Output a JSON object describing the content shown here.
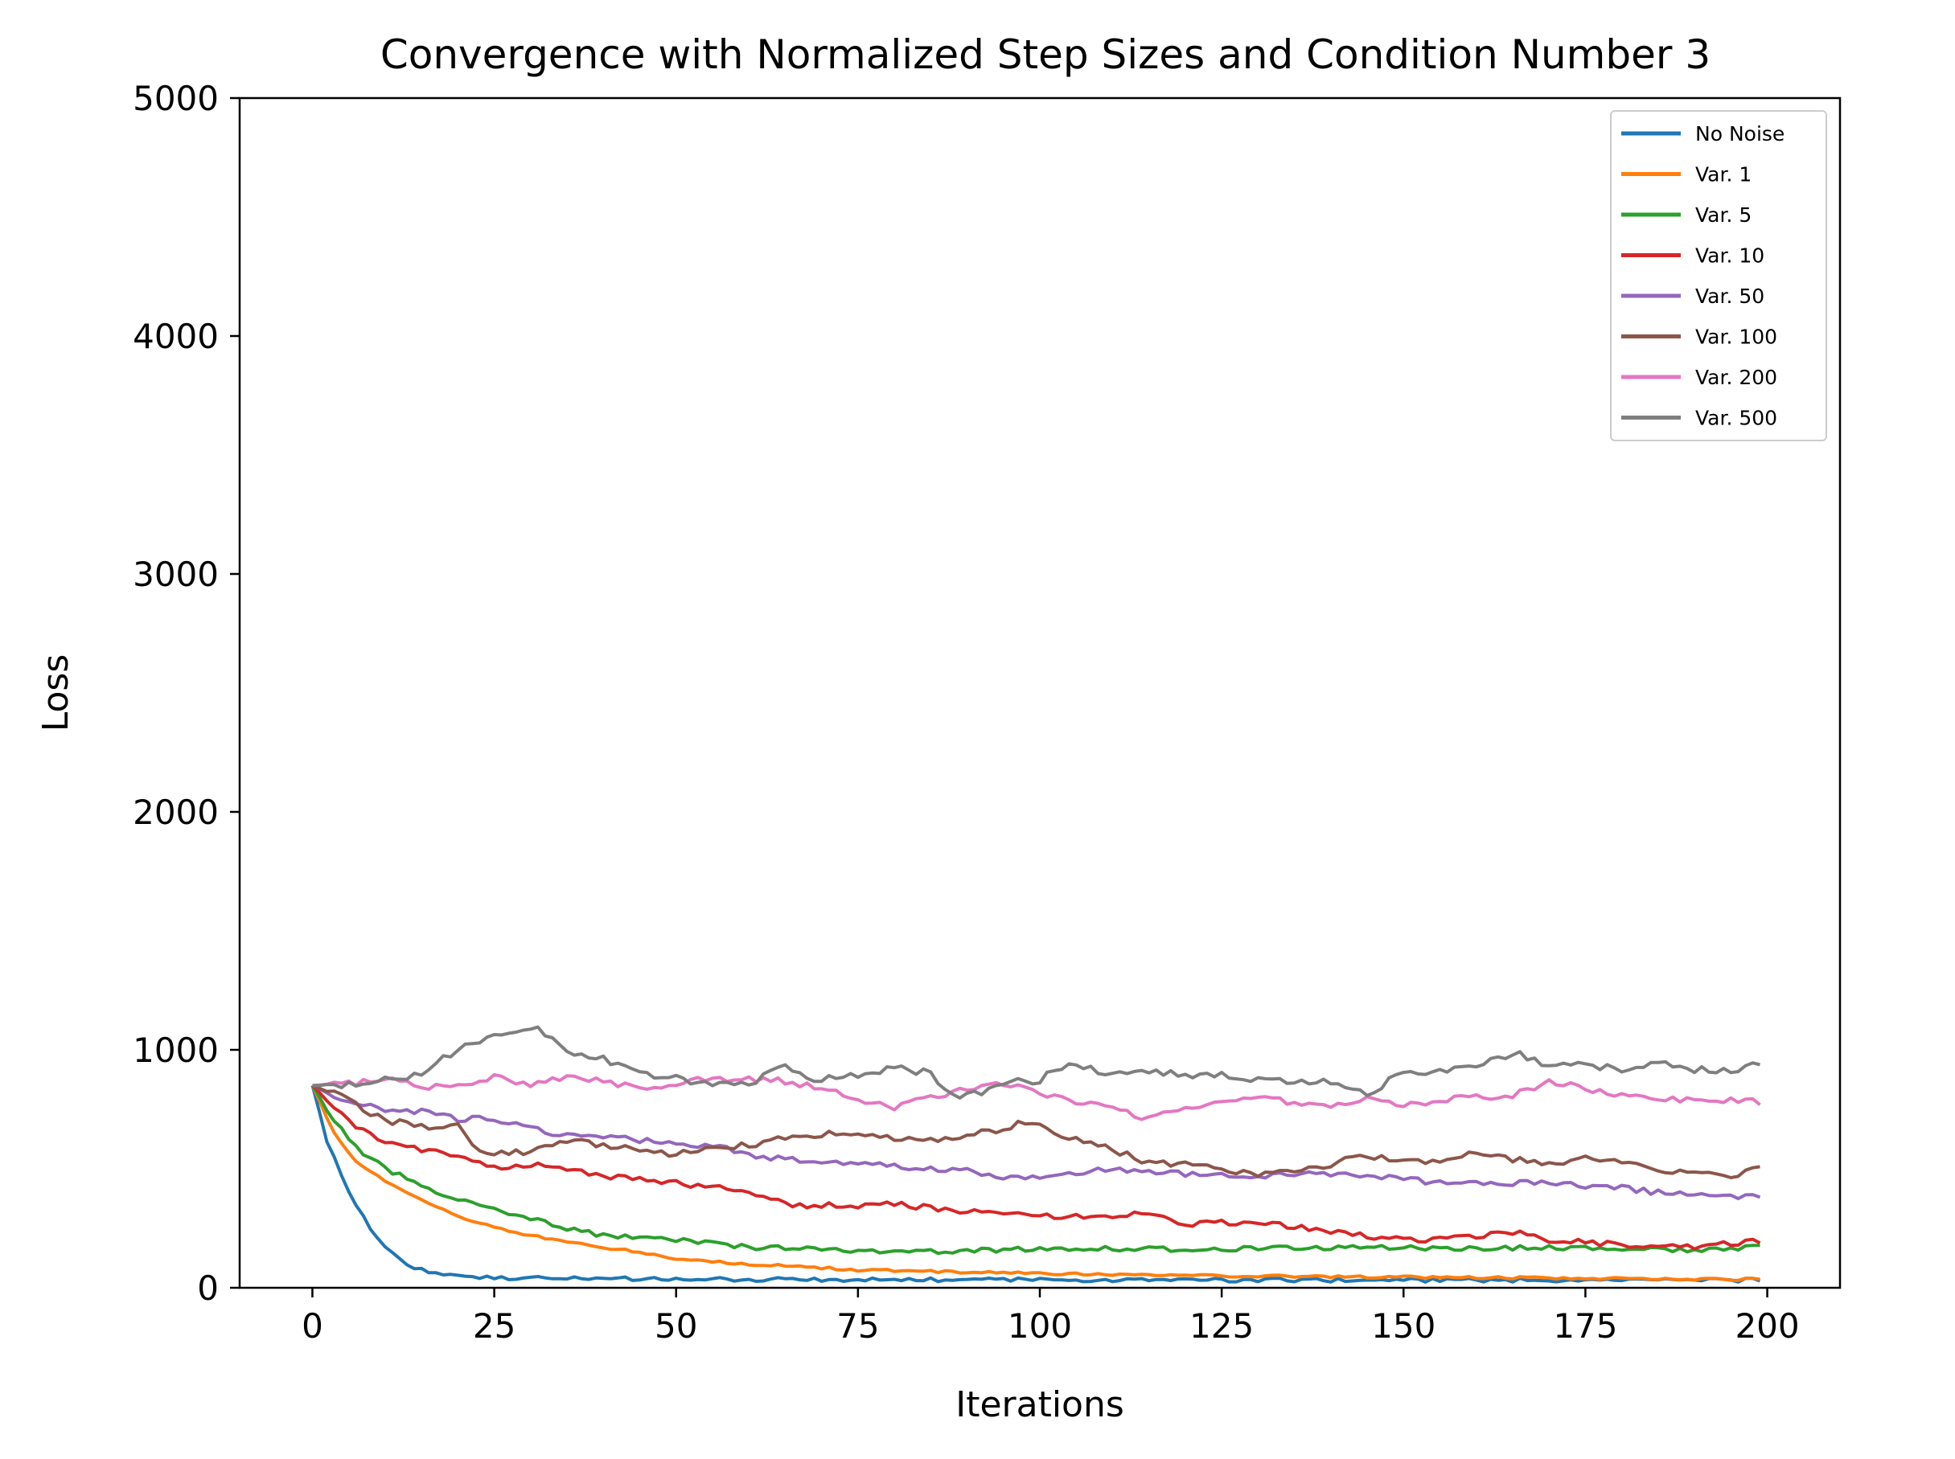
{
  "chart_data": {
    "type": "line",
    "title": "Convergence with Normalized Step Sizes and Condition Number 3",
    "xlabel": "Iterations",
    "ylabel": "Loss",
    "xlim": [
      -10,
      210
    ],
    "ylim": [
      0,
      5000
    ],
    "xticks": [
      0,
      25,
      50,
      75,
      100,
      125,
      150,
      175,
      200
    ],
    "yticks": [
      0,
      1000,
      2000,
      3000,
      4000,
      5000
    ],
    "grid": false,
    "legend_position": "top-right",
    "x_range": [
      0,
      199
    ],
    "series": [
      {
        "name": "No Noise",
        "color": "#1f77b4",
        "noise": 8,
        "anchors": [
          [
            0,
            850
          ],
          [
            2,
            620
          ],
          [
            4,
            470
          ],
          [
            6,
            350
          ],
          [
            8,
            250
          ],
          [
            10,
            170
          ],
          [
            12,
            120
          ],
          [
            14,
            85
          ],
          [
            17,
            60
          ],
          [
            20,
            48
          ],
          [
            25,
            42
          ],
          [
            30,
            40
          ],
          [
            40,
            38
          ],
          [
            60,
            35
          ],
          [
            100,
            33
          ],
          [
            150,
            32
          ],
          [
            199,
            32
          ]
        ]
      },
      {
        "name": "Var. 1",
        "color": "#ff7f0e",
        "noise": 5,
        "anchors": [
          [
            0,
            850
          ],
          [
            3,
            650
          ],
          [
            6,
            530
          ],
          [
            10,
            450
          ],
          [
            15,
            370
          ],
          [
            20,
            300
          ],
          [
            25,
            255
          ],
          [
            30,
            220
          ],
          [
            35,
            190
          ],
          [
            40,
            170
          ],
          [
            45,
            150
          ],
          [
            50,
            120
          ],
          [
            60,
            100
          ],
          [
            75,
            75
          ],
          [
            100,
            60
          ],
          [
            125,
            50
          ],
          [
            150,
            45
          ],
          [
            175,
            40
          ],
          [
            199,
            35
          ]
        ]
      },
      {
        "name": "Var. 5",
        "color": "#2ca02c",
        "noise": 10,
        "anchors": [
          [
            0,
            850
          ],
          [
            3,
            700
          ],
          [
            6,
            590
          ],
          [
            10,
            500
          ],
          [
            15,
            430
          ],
          [
            20,
            370
          ],
          [
            25,
            330
          ],
          [
            30,
            290
          ],
          [
            35,
            250
          ],
          [
            40,
            220
          ],
          [
            45,
            210
          ],
          [
            50,
            200
          ],
          [
            55,
            185
          ],
          [
            60,
            170
          ],
          [
            70,
            165
          ],
          [
            80,
            150
          ],
          [
            90,
            155
          ],
          [
            100,
            165
          ],
          [
            110,
            165
          ],
          [
            120,
            160
          ],
          [
            130,
            165
          ],
          [
            140,
            170
          ],
          [
            150,
            170
          ],
          [
            160,
            165
          ],
          [
            170,
            170
          ],
          [
            180,
            165
          ],
          [
            190,
            160
          ],
          [
            199,
            170
          ]
        ]
      },
      {
        "name": "Var. 10",
        "color": "#d62728",
        "noise": 12,
        "anchors": [
          [
            0,
            850
          ],
          [
            3,
            760
          ],
          [
            6,
            680
          ],
          [
            10,
            610
          ],
          [
            15,
            580
          ],
          [
            20,
            560
          ],
          [
            25,
            500
          ],
          [
            30,
            520
          ],
          [
            40,
            470
          ],
          [
            50,
            440
          ],
          [
            60,
            410
          ],
          [
            65,
            350
          ],
          [
            70,
            345
          ],
          [
            80,
            350
          ],
          [
            90,
            320
          ],
          [
            100,
            300
          ],
          [
            110,
            300
          ],
          [
            115,
            315
          ],
          [
            120,
            270
          ],
          [
            130,
            275
          ],
          [
            135,
            255
          ],
          [
            140,
            240
          ],
          [
            150,
            200
          ],
          [
            160,
            215
          ],
          [
            165,
            235
          ],
          [
            170,
            200
          ],
          [
            180,
            180
          ],
          [
            190,
            175
          ],
          [
            199,
            195
          ]
        ]
      },
      {
        "name": "Var. 50",
        "color": "#9467bd",
        "noise": 12,
        "anchors": [
          [
            0,
            850
          ],
          [
            5,
            780
          ],
          [
            10,
            750
          ],
          [
            15,
            740
          ],
          [
            20,
            710
          ],
          [
            25,
            710
          ],
          [
            30,
            670
          ],
          [
            35,
            640
          ],
          [
            40,
            640
          ],
          [
            45,
            620
          ],
          [
            50,
            600
          ],
          [
            55,
            600
          ],
          [
            60,
            560
          ],
          [
            65,
            540
          ],
          [
            70,
            530
          ],
          [
            80,
            510
          ],
          [
            90,
            490
          ],
          [
            95,
            460
          ],
          [
            100,
            460
          ],
          [
            105,
            480
          ],
          [
            110,
            500
          ],
          [
            120,
            480
          ],
          [
            130,
            470
          ],
          [
            140,
            480
          ],
          [
            145,
            470
          ],
          [
            150,
            460
          ],
          [
            155,
            440
          ],
          [
            160,
            440
          ],
          [
            170,
            440
          ],
          [
            180,
            420
          ],
          [
            185,
            400
          ],
          [
            190,
            390
          ],
          [
            199,
            380
          ]
        ]
      },
      {
        "name": "Var. 100",
        "color": "#8c564b",
        "noise": 14,
        "anchors": [
          [
            0,
            850
          ],
          [
            5,
            790
          ],
          [
            10,
            700
          ],
          [
            15,
            680
          ],
          [
            20,
            680
          ],
          [
            22,
            600
          ],
          [
            25,
            560
          ],
          [
            30,
            570
          ],
          [
            35,
            620
          ],
          [
            40,
            600
          ],
          [
            45,
            580
          ],
          [
            50,
            560
          ],
          [
            55,
            580
          ],
          [
            60,
            600
          ],
          [
            65,
            630
          ],
          [
            70,
            640
          ],
          [
            75,
            660
          ],
          [
            80,
            620
          ],
          [
            85,
            620
          ],
          [
            90,
            640
          ],
          [
            95,
            670
          ],
          [
            98,
            700
          ],
          [
            100,
            690
          ],
          [
            103,
            640
          ],
          [
            108,
            600
          ],
          [
            112,
            560
          ],
          [
            115,
            520
          ],
          [
            120,
            520
          ],
          [
            125,
            500
          ],
          [
            130,
            470
          ],
          [
            135,
            490
          ],
          [
            140,
            520
          ],
          [
            145,
            560
          ],
          [
            150,
            530
          ],
          [
            155,
            540
          ],
          [
            160,
            570
          ],
          [
            165,
            540
          ],
          [
            170,
            520
          ],
          [
            175,
            550
          ],
          [
            180,
            530
          ],
          [
            185,
            490
          ],
          [
            190,
            500
          ],
          [
            195,
            470
          ],
          [
            199,
            500
          ]
        ]
      },
      {
        "name": "Var. 200",
        "color": "#e377c2",
        "noise": 14,
        "anchors": [
          [
            0,
            850
          ],
          [
            5,
            860
          ],
          [
            10,
            880
          ],
          [
            15,
            840
          ],
          [
            20,
            850
          ],
          [
            25,
            890
          ],
          [
            30,
            850
          ],
          [
            35,
            890
          ],
          [
            40,
            870
          ],
          [
            45,
            840
          ],
          [
            50,
            860
          ],
          [
            55,
            880
          ],
          [
            60,
            880
          ],
          [
            65,
            870
          ],
          [
            70,
            840
          ],
          [
            75,
            790
          ],
          [
            80,
            760
          ],
          [
            85,
            800
          ],
          [
            90,
            840
          ],
          [
            95,
            860
          ],
          [
            100,
            820
          ],
          [
            105,
            780
          ],
          [
            110,
            760
          ],
          [
            114,
            720
          ],
          [
            118,
            740
          ],
          [
            125,
            790
          ],
          [
            130,
            800
          ],
          [
            135,
            780
          ],
          [
            140,
            770
          ],
          [
            145,
            800
          ],
          [
            150,
            770
          ],
          [
            155,
            790
          ],
          [
            160,
            800
          ],
          [
            165,
            810
          ],
          [
            170,
            860
          ],
          [
            175,
            840
          ],
          [
            180,
            810
          ],
          [
            185,
            800
          ],
          [
            190,
            790
          ],
          [
            195,
            790
          ],
          [
            199,
            780
          ]
        ]
      },
      {
        "name": "Var. 500",
        "color": "#7f7f7f",
        "noise": 16,
        "anchors": [
          [
            0,
            850
          ],
          [
            5,
            850
          ],
          [
            10,
            870
          ],
          [
            15,
            900
          ],
          [
            20,
            1000
          ],
          [
            25,
            1050
          ],
          [
            30,
            1100
          ],
          [
            33,
            1060
          ],
          [
            35,
            980
          ],
          [
            40,
            960
          ],
          [
            45,
            900
          ],
          [
            50,
            880
          ],
          [
            55,
            860
          ],
          [
            60,
            860
          ],
          [
            65,
            930
          ],
          [
            70,
            870
          ],
          [
            75,
            900
          ],
          [
            80,
            920
          ],
          [
            85,
            900
          ],
          [
            88,
            800
          ],
          [
            92,
            820
          ],
          [
            95,
            870
          ],
          [
            100,
            870
          ],
          [
            102,
            920
          ],
          [
            105,
            930
          ],
          [
            110,
            900
          ],
          [
            115,
            900
          ],
          [
            120,
            900
          ],
          [
            125,
            890
          ],
          [
            130,
            880
          ],
          [
            135,
            860
          ],
          [
            140,
            870
          ],
          [
            145,
            820
          ],
          [
            150,
            900
          ],
          [
            155,
            920
          ],
          [
            160,
            930
          ],
          [
            165,
            990
          ],
          [
            170,
            940
          ],
          [
            175,
            930
          ],
          [
            180,
            920
          ],
          [
            185,
            940
          ],
          [
            190,
            920
          ],
          [
            195,
            910
          ],
          [
            199,
            940
          ]
        ]
      }
    ]
  }
}
